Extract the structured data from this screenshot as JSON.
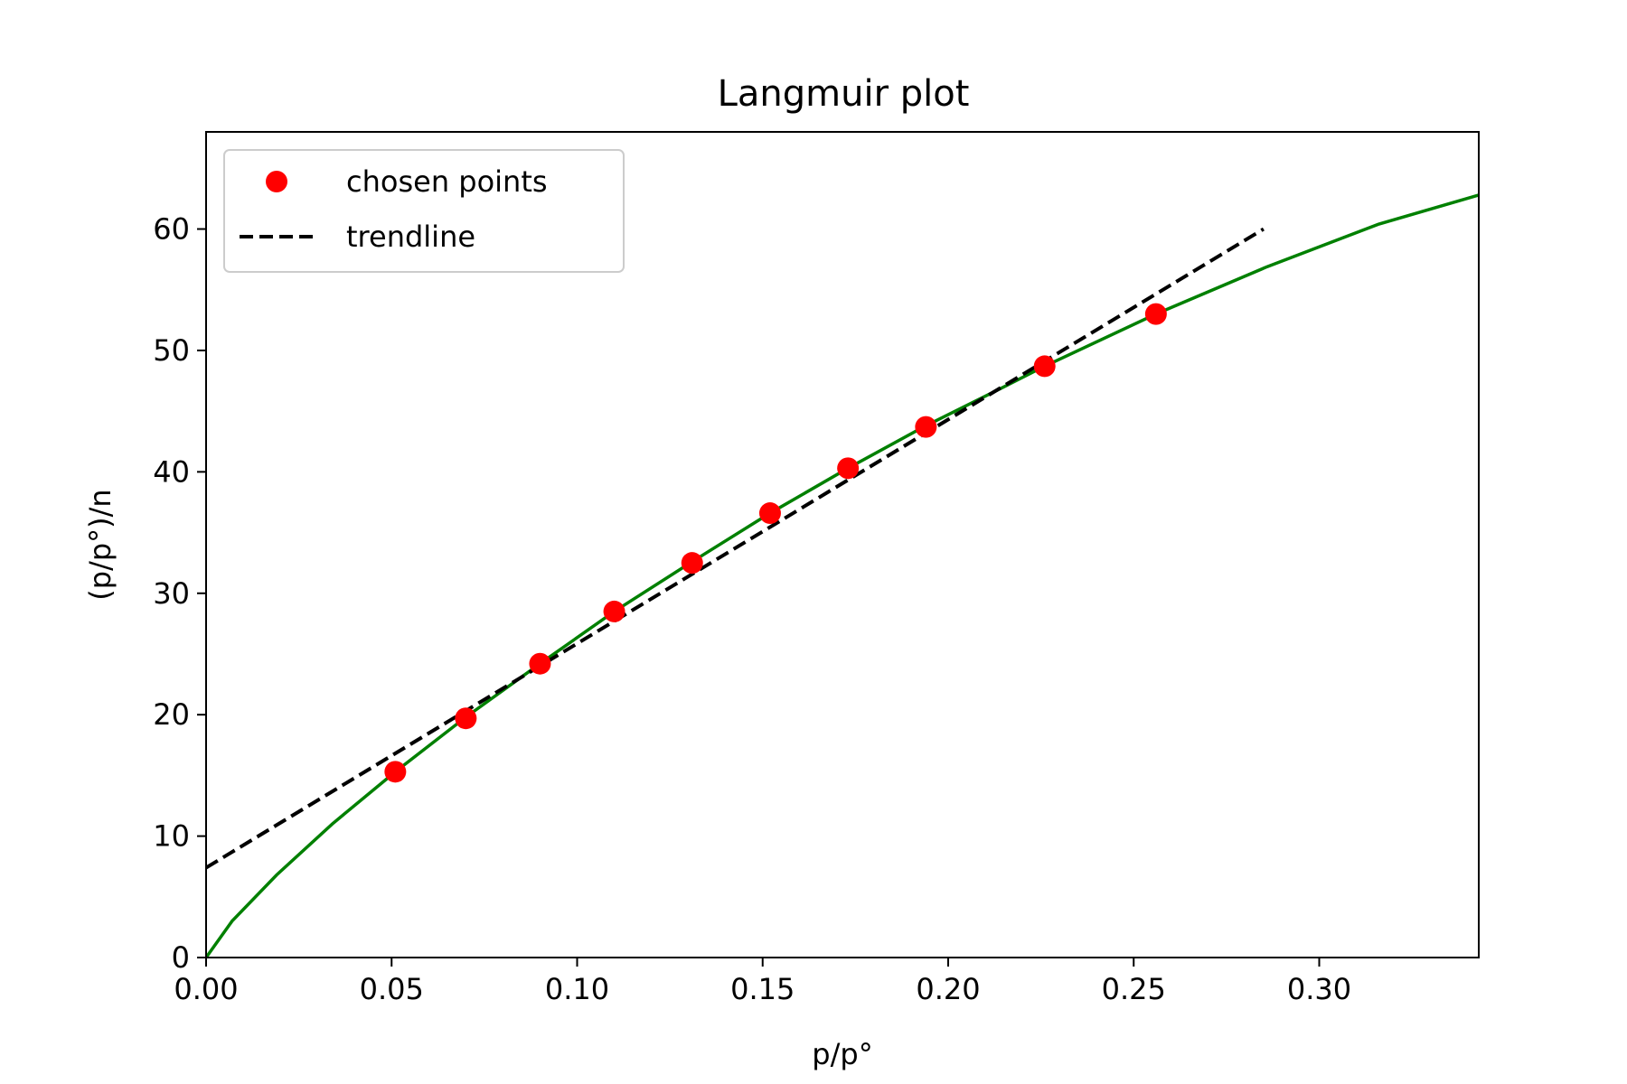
{
  "chart_data": {
    "type": "line",
    "title": "Langmuir plot",
    "xlabel": "p/p°",
    "ylabel": "(p/p°)/n",
    "xlim": [
      0.0,
      0.343
    ],
    "ylim": [
      0,
      68
    ],
    "xticks": [
      0.0,
      0.05,
      0.1,
      0.15,
      0.2,
      0.25,
      0.3
    ],
    "xtick_labels": [
      "0.00",
      "0.05",
      "0.10",
      "0.15",
      "0.20",
      "0.25",
      "0.30"
    ],
    "yticks": [
      0,
      10,
      20,
      30,
      40,
      50,
      60
    ],
    "ytick_labels": [
      "0",
      "10",
      "20",
      "30",
      "40",
      "50",
      "60"
    ],
    "grid": false,
    "legend_position": "top-left",
    "curve": {
      "color": "#008000",
      "x": [
        0.0,
        0.007,
        0.019,
        0.034,
        0.051,
        0.07,
        0.09,
        0.11,
        0.131,
        0.152,
        0.173,
        0.194,
        0.215,
        0.226,
        0.256,
        0.286,
        0.316,
        0.343
      ],
      "y": [
        0.0,
        3.0,
        6.8,
        11.0,
        15.3,
        19.8,
        24.2,
        28.5,
        32.6,
        36.6,
        40.3,
        43.8,
        47.0,
        48.7,
        53.0,
        56.9,
        60.4,
        62.8
      ]
    },
    "series": [
      {
        "name": "chosen points",
        "kind": "scatter",
        "color": "#ff0000",
        "x": [
          0.051,
          0.07,
          0.09,
          0.11,
          0.131,
          0.152,
          0.173,
          0.194,
          0.226,
          0.256
        ],
        "y": [
          15.3,
          19.7,
          24.2,
          28.5,
          32.5,
          36.6,
          40.3,
          43.7,
          48.7,
          53.0
        ]
      },
      {
        "name": "trendline",
        "kind": "dashed-line",
        "color": "#000000",
        "x": [
          0.0,
          0.285
        ],
        "y": [
          7.4,
          60.0
        ]
      }
    ]
  }
}
